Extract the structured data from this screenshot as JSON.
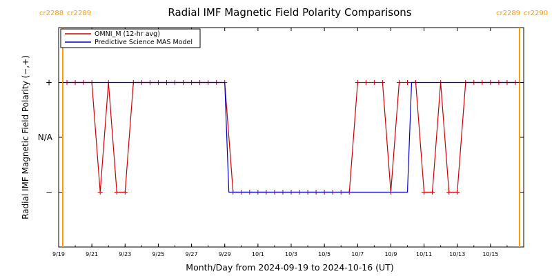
{
  "chart_data": {
    "type": "line",
    "title": "Radial IMF Magnetic Field Polarity Comparisons",
    "xlabel": "Month/Day from 2024-09-19 to 2024-10-16 (UT)",
    "ylabel": "Radial IMF Magnetic Field Polarity (−,+)",
    "x_start": "2024-09-19",
    "x_end": "2024-10-17",
    "x_tick_dates": [
      "2024-09-19",
      "2024-09-21",
      "2024-09-23",
      "2024-09-25",
      "2024-09-27",
      "2024-09-29",
      "2024-10-01",
      "2024-10-03",
      "2024-10-05",
      "2024-10-07",
      "2024-10-09",
      "2024-10-11",
      "2024-10-13",
      "2024-10-15"
    ],
    "x_tick_labels": [
      "9/19",
      "9/21",
      "9/23",
      "9/25",
      "9/27",
      "9/29",
      "10/1",
      "10/3",
      "10/5",
      "10/7",
      "10/9",
      "10/11",
      "10/13",
      "10/15"
    ],
    "ylim": [
      -2,
      2
    ],
    "y_tick_values": [
      1,
      0,
      -1
    ],
    "y_tick_labels": [
      "+",
      "N/A",
      "−"
    ],
    "legend_position": "top-left",
    "grid": false,
    "carrington_markers": [
      {
        "date": "2024-09-19 06:00",
        "left_label": "cr2288",
        "right_label": "cr2289"
      },
      {
        "date": "2024-10-16 18:00",
        "left_label": "cr2289",
        "right_label": "cr2290"
      }
    ],
    "series": [
      {
        "name": "OMNI_M (12-hr avg)",
        "color": "#cc0000",
        "marker": "plus",
        "x": [
          "2024-09-19 12:00",
          "2024-09-20 00:00",
          "2024-09-20 12:00",
          "2024-09-21 00:00",
          "2024-09-21 12:00",
          "2024-09-22 00:00",
          "2024-09-22 12:00",
          "2024-09-23 00:00",
          "2024-09-23 12:00",
          "2024-09-24 00:00",
          "2024-09-24 12:00",
          "2024-09-25 00:00",
          "2024-09-25 12:00",
          "2024-09-26 00:00",
          "2024-09-26 12:00",
          "2024-09-27 00:00",
          "2024-09-27 12:00",
          "2024-09-28 00:00",
          "2024-09-28 12:00",
          "2024-09-29 00:00",
          "2024-09-29 12:00",
          "2024-09-30 00:00",
          "2024-09-30 12:00",
          "2024-10-01 00:00",
          "2024-10-01 12:00",
          "2024-10-02 00:00",
          "2024-10-02 12:00",
          "2024-10-03 00:00",
          "2024-10-03 12:00",
          "2024-10-04 00:00",
          "2024-10-04 12:00",
          "2024-10-05 00:00",
          "2024-10-05 12:00",
          "2024-10-06 00:00",
          "2024-10-06 12:00",
          "2024-10-07 00:00",
          "2024-10-07 12:00",
          "2024-10-08 00:00",
          "2024-10-08 12:00",
          "2024-10-09 00:00",
          "2024-10-09 12:00",
          "2024-10-10 00:00",
          "2024-10-10 12:00",
          "2024-10-11 00:00",
          "2024-10-11 12:00",
          "2024-10-12 00:00",
          "2024-10-12 12:00",
          "2024-10-13 00:00",
          "2024-10-13 12:00",
          "2024-10-14 00:00",
          "2024-10-14 12:00",
          "2024-10-15 00:00",
          "2024-10-15 12:00",
          "2024-10-16 00:00",
          "2024-10-16 12:00"
        ],
        "y": [
          1,
          1,
          1,
          1,
          -1,
          1,
          -1,
          -1,
          1,
          1,
          1,
          1,
          1,
          1,
          1,
          1,
          1,
          1,
          1,
          1,
          -1,
          -1,
          -1,
          -1,
          -1,
          -1,
          -1,
          -1,
          -1,
          -1,
          -1,
          -1,
          -1,
          -1,
          -1,
          1,
          1,
          1,
          1,
          -1,
          1,
          1,
          1,
          -1,
          -1,
          1,
          -1,
          -1,
          1,
          1,
          1,
          1,
          1,
          1,
          1
        ]
      },
      {
        "name": "Predictive Science MAS Model",
        "color": "#0000cc",
        "x": [
          "2024-09-19 06:00",
          "2024-09-29 00:00",
          "2024-09-29 06:00",
          "2024-10-10 00:00",
          "2024-10-10 06:00",
          "2024-10-16 18:00"
        ],
        "y": [
          1,
          1,
          -1,
          -1,
          1,
          1
        ]
      }
    ]
  }
}
